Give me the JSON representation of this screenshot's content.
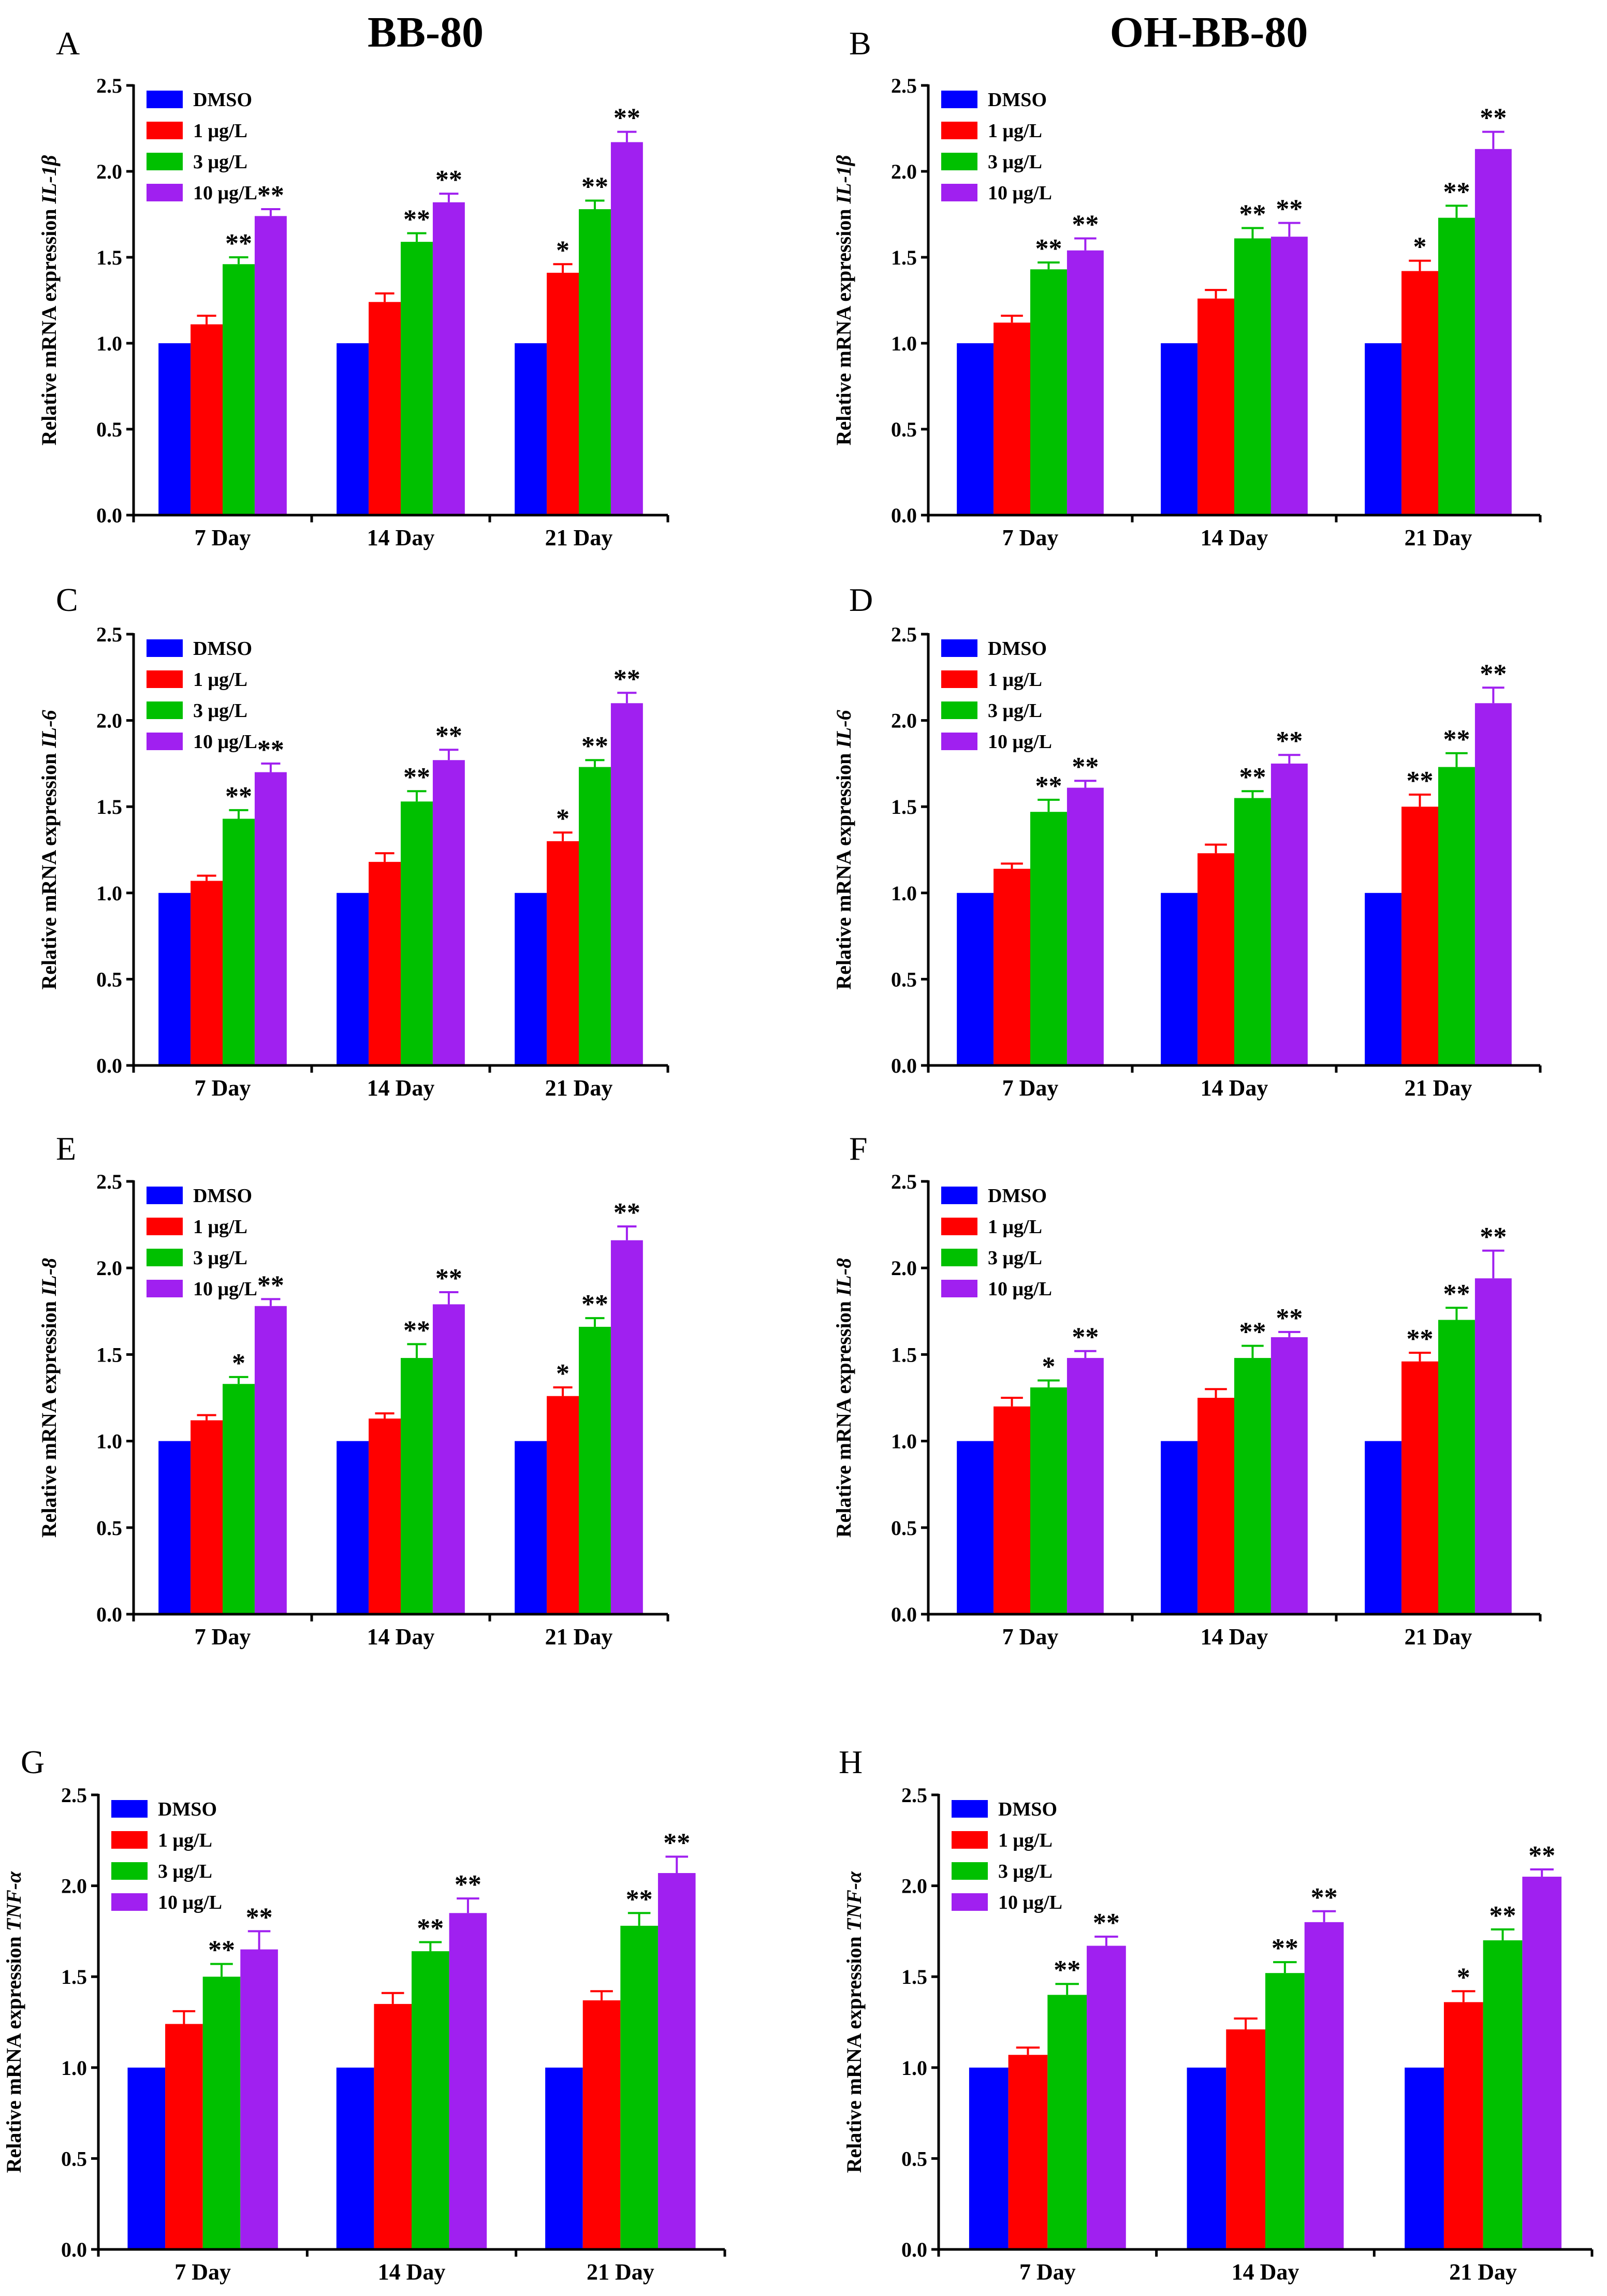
{
  "figure": {
    "titles": {
      "left": "BB-80",
      "right": "OH-BB-80"
    }
  },
  "colors": {
    "DMSO": "#0000ff",
    "1 μg/L": "#ff0000",
    "3 μg/L": "#00c000",
    "10 μg/L": "#a020f0"
  },
  "chart_data": [
    {
      "panel": "A",
      "type": "bar",
      "compound": "BB-80",
      "ylabel_prefix": "Relative mRNA expression ",
      "gene": "IL-1β",
      "ylim": [
        0,
        2.5
      ],
      "yticks": [
        "0.0",
        "0.5",
        "1.0",
        "1.5",
        "2.0",
        "2.5"
      ],
      "categories": [
        "7 Day",
        "14 Day",
        "21 Day"
      ],
      "series": [
        {
          "name": "DMSO",
          "values": [
            1.0,
            1.0,
            1.0
          ],
          "errors": [
            0,
            0,
            0
          ],
          "sig": [
            "",
            "",
            ""
          ]
        },
        {
          "name": "1 μg/L",
          "values": [
            1.11,
            1.24,
            1.41
          ],
          "errors": [
            0.05,
            0.05,
            0.05
          ],
          "sig": [
            "",
            "",
            "*"
          ]
        },
        {
          "name": "3 μg/L",
          "values": [
            1.46,
            1.59,
            1.78
          ],
          "errors": [
            0.04,
            0.05,
            0.05
          ],
          "sig": [
            "**",
            "**",
            "**"
          ]
        },
        {
          "name": "10 μg/L",
          "values": [
            1.74,
            1.82,
            2.17
          ],
          "errors": [
            0.04,
            0.05,
            0.06
          ],
          "sig": [
            "**",
            "**",
            "**"
          ]
        }
      ]
    },
    {
      "panel": "B",
      "type": "bar",
      "compound": "OH-BB-80",
      "ylabel_prefix": "Relative mRNA expression ",
      "gene": "IL-1β",
      "ylim": [
        0,
        2.5
      ],
      "yticks": [
        "0.0",
        "0.5",
        "1.0",
        "1.5",
        "2.0",
        "2.5"
      ],
      "categories": [
        "7 Day",
        "14 Day",
        "21 Day"
      ],
      "series": [
        {
          "name": "DMSO",
          "values": [
            1.0,
            1.0,
            1.0
          ],
          "errors": [
            0,
            0,
            0
          ],
          "sig": [
            "",
            "",
            ""
          ]
        },
        {
          "name": "1 μg/L",
          "values": [
            1.12,
            1.26,
            1.42
          ],
          "errors": [
            0.04,
            0.05,
            0.06
          ],
          "sig": [
            "",
            "",
            "*"
          ]
        },
        {
          "name": "3 μg/L",
          "values": [
            1.43,
            1.61,
            1.73
          ],
          "errors": [
            0.04,
            0.06,
            0.07
          ],
          "sig": [
            "**",
            "**",
            "**"
          ]
        },
        {
          "name": "10 μg/L",
          "values": [
            1.54,
            1.62,
            2.13
          ],
          "errors": [
            0.07,
            0.08,
            0.1
          ],
          "sig": [
            "**",
            "**",
            "**"
          ]
        }
      ]
    },
    {
      "panel": "C",
      "type": "bar",
      "compound": "BB-80",
      "ylabel_prefix": "Relative mRNA expression ",
      "gene": "IL-6",
      "ylim": [
        0,
        2.5
      ],
      "yticks": [
        "0.0",
        "0.5",
        "1.0",
        "1.5",
        "2.0",
        "2.5"
      ],
      "categories": [
        "7 Day",
        "14 Day",
        "21 Day"
      ],
      "series": [
        {
          "name": "DMSO",
          "values": [
            1.0,
            1.0,
            1.0
          ],
          "errors": [
            0,
            0,
            0
          ],
          "sig": [
            "",
            "",
            ""
          ]
        },
        {
          "name": "1 μg/L",
          "values": [
            1.07,
            1.18,
            1.3
          ],
          "errors": [
            0.03,
            0.05,
            0.05
          ],
          "sig": [
            "",
            "",
            "*"
          ]
        },
        {
          "name": "3 μg/L",
          "values": [
            1.43,
            1.53,
            1.73
          ],
          "errors": [
            0.05,
            0.06,
            0.04
          ],
          "sig": [
            "**",
            "**",
            "**"
          ]
        },
        {
          "name": "10 μg/L",
          "values": [
            1.7,
            1.77,
            2.1
          ],
          "errors": [
            0.05,
            0.06,
            0.06
          ],
          "sig": [
            "**",
            "**",
            "**"
          ]
        }
      ]
    },
    {
      "panel": "D",
      "type": "bar",
      "compound": "OH-BB-80",
      "ylabel_prefix": "Relative mRNA expression ",
      "gene": "IL-6",
      "ylim": [
        0,
        2.5
      ],
      "yticks": [
        "0.0",
        "0.5",
        "1.0",
        "1.5",
        "2.0",
        "2.5"
      ],
      "categories": [
        "7 Day",
        "14 Day",
        "21 Day"
      ],
      "series": [
        {
          "name": "DMSO",
          "values": [
            1.0,
            1.0,
            1.0
          ],
          "errors": [
            0,
            0,
            0
          ],
          "sig": [
            "",
            "",
            ""
          ]
        },
        {
          "name": "1 μg/L",
          "values": [
            1.14,
            1.23,
            1.5
          ],
          "errors": [
            0.03,
            0.05,
            0.07
          ],
          "sig": [
            "",
            "",
            "**"
          ]
        },
        {
          "name": "3 μg/L",
          "values": [
            1.47,
            1.55,
            1.73
          ],
          "errors": [
            0.07,
            0.04,
            0.08
          ],
          "sig": [
            "**",
            "**",
            "**"
          ]
        },
        {
          "name": "10 μg/L",
          "values": [
            1.61,
            1.75,
            2.1
          ],
          "errors": [
            0.04,
            0.05,
            0.09
          ],
          "sig": [
            "**",
            "**",
            "**"
          ]
        }
      ]
    },
    {
      "panel": "E",
      "type": "bar",
      "compound": "BB-80",
      "ylabel_prefix": "Relative mRNA expression ",
      "gene": "IL-8",
      "ylim": [
        0,
        2.5
      ],
      "yticks": [
        "0.0",
        "0.5",
        "1.0",
        "1.5",
        "2.0",
        "2.5"
      ],
      "categories": [
        "7 Day",
        "14 Day",
        "21 Day"
      ],
      "series": [
        {
          "name": "DMSO",
          "values": [
            1.0,
            1.0,
            1.0
          ],
          "errors": [
            0,
            0,
            0
          ],
          "sig": [
            "",
            "",
            ""
          ]
        },
        {
          "name": "1 μg/L",
          "values": [
            1.12,
            1.13,
            1.26
          ],
          "errors": [
            0.03,
            0.03,
            0.05
          ],
          "sig": [
            "",
            "",
            "*"
          ]
        },
        {
          "name": "3 μg/L",
          "values": [
            1.33,
            1.48,
            1.66
          ],
          "errors": [
            0.04,
            0.08,
            0.05
          ],
          "sig": [
            "*",
            "**",
            "**"
          ]
        },
        {
          "name": "10 μg/L",
          "values": [
            1.78,
            1.79,
            2.16
          ],
          "errors": [
            0.04,
            0.07,
            0.08
          ],
          "sig": [
            "**",
            "**",
            "**"
          ]
        }
      ]
    },
    {
      "panel": "F",
      "type": "bar",
      "compound": "OH-BB-80",
      "ylabel_prefix": "Relative mRNA expression ",
      "gene": "IL-8",
      "ylim": [
        0,
        2.5
      ],
      "yticks": [
        "0.0",
        "0.5",
        "1.0",
        "1.5",
        "2.0",
        "2.5"
      ],
      "categories": [
        "7 Day",
        "14 Day",
        "21 Day"
      ],
      "series": [
        {
          "name": "DMSO",
          "values": [
            1.0,
            1.0,
            1.0
          ],
          "errors": [
            0,
            0,
            0
          ],
          "sig": [
            "",
            "",
            ""
          ]
        },
        {
          "name": "1 μg/L",
          "values": [
            1.2,
            1.25,
            1.46
          ],
          "errors": [
            0.05,
            0.05,
            0.05
          ],
          "sig": [
            "",
            "",
            "**"
          ]
        },
        {
          "name": "3 μg/L",
          "values": [
            1.31,
            1.48,
            1.7
          ],
          "errors": [
            0.04,
            0.07,
            0.07
          ],
          "sig": [
            "*",
            "**",
            "**"
          ]
        },
        {
          "name": "10 μg/L",
          "values": [
            1.48,
            1.6,
            1.94
          ],
          "errors": [
            0.04,
            0.03,
            0.16
          ],
          "sig": [
            "**",
            "**",
            "**"
          ]
        }
      ]
    },
    {
      "panel": "G",
      "type": "bar",
      "compound": "BB-80",
      "ylabel_prefix": "Relative mRNA expression ",
      "gene": "TNF-α",
      "ylim": [
        0,
        2.5
      ],
      "yticks": [
        "0.0",
        "0.5",
        "1.0",
        "1.5",
        "2.0",
        "2.5"
      ],
      "categories": [
        "7 Day",
        "14 Day",
        "21 Day"
      ],
      "series": [
        {
          "name": "DMSO",
          "values": [
            1.0,
            1.0,
            1.0
          ],
          "errors": [
            0,
            0,
            0
          ],
          "sig": [
            "",
            "",
            ""
          ]
        },
        {
          "name": "1 μg/L",
          "values": [
            1.24,
            1.35,
            1.37
          ],
          "errors": [
            0.07,
            0.06,
            0.05
          ],
          "sig": [
            "",
            "",
            ""
          ]
        },
        {
          "name": "3 μg/L",
          "values": [
            1.5,
            1.64,
            1.78
          ],
          "errors": [
            0.07,
            0.05,
            0.07
          ],
          "sig": [
            "**",
            "**",
            "**"
          ]
        },
        {
          "name": "10 μg/L",
          "values": [
            1.65,
            1.85,
            2.07
          ],
          "errors": [
            0.1,
            0.08,
            0.09
          ],
          "sig": [
            "**",
            "**",
            "**"
          ]
        }
      ]
    },
    {
      "panel": "H",
      "type": "bar",
      "compound": "OH-BB-80",
      "ylabel_prefix": "Relative mRNA expression ",
      "gene": "TNF-α",
      "ylim": [
        0,
        2.5
      ],
      "yticks": [
        "0.0",
        "0.5",
        "1.0",
        "1.5",
        "2.0",
        "2.5"
      ],
      "categories": [
        "7 Day",
        "14 Day",
        "21 Day"
      ],
      "series": [
        {
          "name": "DMSO",
          "values": [
            1.0,
            1.0,
            1.0
          ],
          "errors": [
            0,
            0,
            0
          ],
          "sig": [
            "",
            "",
            ""
          ]
        },
        {
          "name": "1 μg/L",
          "values": [
            1.07,
            1.21,
            1.36
          ],
          "errors": [
            0.04,
            0.06,
            0.06
          ],
          "sig": [
            "",
            "",
            "*"
          ]
        },
        {
          "name": "3 μg/L",
          "values": [
            1.4,
            1.52,
            1.7
          ],
          "errors": [
            0.06,
            0.06,
            0.06
          ],
          "sig": [
            "**",
            "**",
            "**"
          ]
        },
        {
          "name": "10 μg/L",
          "values": [
            1.67,
            1.8,
            2.05
          ],
          "errors": [
            0.05,
            0.06,
            0.04
          ],
          "sig": [
            "**",
            "**",
            "**"
          ]
        }
      ]
    }
  ]
}
